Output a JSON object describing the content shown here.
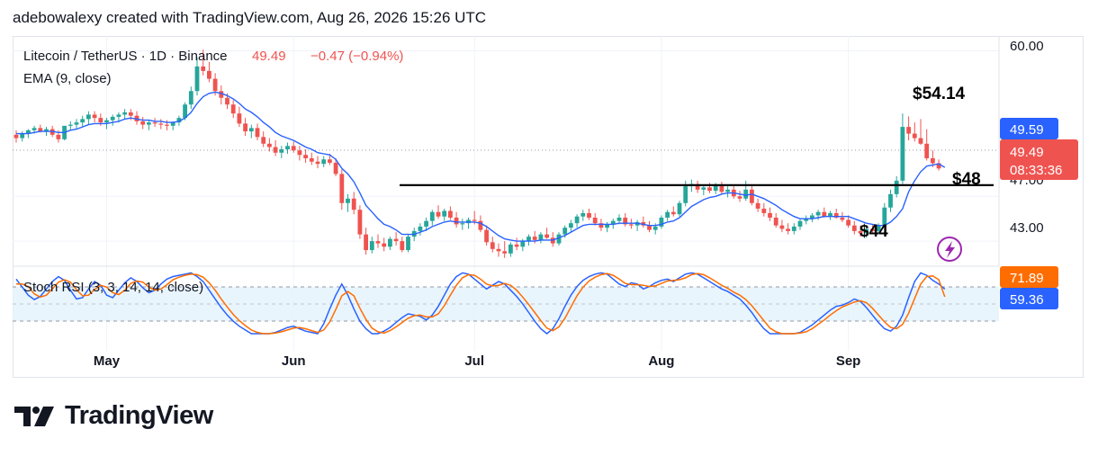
{
  "header": {
    "attribution": "adebowalexy created with TradingView.com, Aug 26, 2026 15:26 UTC"
  },
  "legend": {
    "symbol": "Litecoin / TetherUS · 1D · Binance",
    "last": "49.49",
    "change": "−0.47 (−0.94%)",
    "ema": "EMA (9, close)",
    "stoch": "Stoch RSI (3, 3, 14, 14, close)"
  },
  "price_axis": {
    "ticks": [
      "60.00",
      "47.00",
      "43.00"
    ]
  },
  "price_tags": {
    "ema": "49.59",
    "last": "49.49",
    "countdown": "08:33:36",
    "stoch_k": "71.89",
    "stoch_d": "59.36"
  },
  "annotations": {
    "high": "$54.14",
    "level": "$48",
    "low": "$44"
  },
  "time_axis": {
    "labels": [
      "May",
      "Jun",
      "Jul",
      "Aug",
      "Sep"
    ]
  },
  "footer": {
    "brand": "TradingView"
  },
  "colors": {
    "up": "#26a69a",
    "down": "#ef5350",
    "ema": "#2962ff",
    "stoch_k": "#2962ff",
    "stoch_d": "#ff6d00",
    "level": "#000000"
  },
  "chart_data": {
    "type": "candlestick",
    "title": "Litecoin / TetherUS · 1D · Binance",
    "ylim": [
      41,
      61
    ],
    "x_labels": [
      "May",
      "Jun",
      "Jul",
      "Aug",
      "Sep"
    ],
    "x_label_days": [
      15,
      46,
      76,
      107,
      138
    ],
    "horizontal_level": 48,
    "ohlc": [
      [
        52.5,
        52.9,
        51.8,
        52.2
      ],
      [
        52.2,
        52.8,
        51.9,
        52.6
      ],
      [
        52.6,
        53.0,
        52.2,
        52.9
      ],
      [
        52.9,
        53.3,
        52.6,
        53.1
      ],
      [
        53.1,
        53.4,
        52.7,
        52.8
      ],
      [
        52.8,
        53.2,
        52.4,
        53.0
      ],
      [
        53.0,
        53.3,
        52.3,
        52.5
      ],
      [
        52.5,
        52.9,
        51.8,
        52.1
      ],
      [
        52.1,
        53.1,
        52.0,
        53.3
      ],
      [
        53.3,
        53.7,
        52.9,
        53.4
      ],
      [
        53.4,
        53.9,
        53.0,
        53.6
      ],
      [
        53.6,
        54.2,
        53.2,
        53.9
      ],
      [
        53.9,
        54.6,
        53.4,
        54.3
      ],
      [
        54.3,
        54.6,
        53.6,
        54.0
      ],
      [
        54.0,
        54.4,
        53.3,
        53.6
      ],
      [
        53.6,
        54.0,
        53.0,
        53.8
      ],
      [
        53.8,
        54.3,
        53.3,
        54.1
      ],
      [
        54.1,
        54.5,
        53.6,
        54.3
      ],
      [
        54.3,
        54.8,
        53.9,
        54.5
      ],
      [
        54.5,
        54.8,
        53.8,
        54.2
      ],
      [
        54.2,
        54.6,
        53.4,
        53.7
      ],
      [
        53.7,
        54.1,
        53.0,
        53.4
      ],
      [
        53.4,
        53.8,
        52.9,
        53.6
      ],
      [
        53.6,
        54.0,
        53.2,
        53.5
      ],
      [
        53.5,
        53.9,
        53.0,
        53.4
      ],
      [
        53.4,
        53.8,
        52.9,
        53.3
      ],
      [
        53.3,
        53.7,
        52.9,
        53.6
      ],
      [
        53.6,
        54.2,
        53.3,
        54.0
      ],
      [
        54.0,
        55.4,
        53.8,
        55.2
      ],
      [
        55.2,
        56.8,
        54.8,
        56.4
      ],
      [
        56.4,
        59.4,
        56.0,
        58.6
      ],
      [
        58.6,
        60.1,
        57.8,
        58.2
      ],
      [
        58.2,
        59.0,
        57.2,
        57.5
      ],
      [
        57.5,
        58.0,
        56.0,
        56.4
      ],
      [
        56.4,
        56.9,
        55.2,
        55.8
      ],
      [
        55.8,
        56.2,
        54.8,
        55.2
      ],
      [
        55.2,
        55.6,
        54.0,
        54.4
      ],
      [
        54.4,
        55.0,
        53.2,
        53.5
      ],
      [
        53.5,
        54.0,
        52.4,
        52.8
      ],
      [
        52.8,
        53.4,
        52.2,
        53.1
      ],
      [
        53.1,
        53.5,
        52.0,
        52.3
      ],
      [
        52.3,
        52.8,
        51.4,
        51.7
      ],
      [
        51.7,
        52.2,
        51.0,
        51.4
      ],
      [
        51.4,
        52.0,
        50.6,
        50.9
      ],
      [
        50.9,
        51.5,
        50.4,
        51.2
      ],
      [
        51.2,
        51.8,
        50.8,
        51.5
      ],
      [
        51.5,
        51.9,
        50.9,
        51.1
      ],
      [
        51.1,
        51.5,
        50.2,
        50.7
      ],
      [
        50.7,
        51.2,
        50.0,
        50.4
      ],
      [
        50.4,
        50.9,
        49.8,
        50.1
      ],
      [
        50.1,
        50.6,
        49.5,
        49.9
      ],
      [
        49.9,
        50.6,
        49.6,
        50.3
      ],
      [
        50.3,
        50.8,
        49.8,
        50.0
      ],
      [
        50.0,
        50.4,
        48.8,
        49.0
      ],
      [
        49.0,
        49.4,
        45.8,
        46.4
      ],
      [
        46.4,
        47.2,
        45.6,
        46.8
      ],
      [
        46.8,
        47.4,
        45.4,
        45.8
      ],
      [
        45.8,
        46.2,
        43.2,
        43.6
      ],
      [
        43.6,
        44.2,
        41.8,
        42.2
      ],
      [
        42.2,
        43.4,
        41.9,
        43.0
      ],
      [
        43.0,
        43.6,
        42.4,
        42.8
      ],
      [
        42.8,
        43.3,
        42.1,
        42.5
      ],
      [
        42.5,
        43.4,
        42.2,
        43.2
      ],
      [
        43.2,
        43.8,
        42.6,
        43.0
      ],
      [
        43.0,
        43.4,
        42.0,
        42.2
      ],
      [
        42.2,
        43.6,
        42.0,
        43.4
      ],
      [
        43.4,
        44.2,
        43.0,
        43.9
      ],
      [
        43.9,
        44.6,
        43.5,
        44.3
      ],
      [
        44.3,
        45.1,
        43.9,
        44.8
      ],
      [
        44.8,
        45.8,
        44.4,
        45.6
      ],
      [
        45.6,
        46.2,
        45.0,
        45.2
      ],
      [
        45.2,
        45.9,
        44.8,
        45.7
      ],
      [
        45.7,
        46.1,
        44.9,
        45.1
      ],
      [
        45.1,
        45.6,
        44.2,
        44.5
      ],
      [
        44.5,
        45.0,
        44.0,
        44.6
      ],
      [
        44.6,
        45.1,
        44.1,
        44.9
      ],
      [
        44.9,
        45.7,
        44.5,
        44.8
      ],
      [
        44.8,
        45.3,
        43.8,
        44.0
      ],
      [
        44.0,
        44.4,
        42.6,
        42.9
      ],
      [
        42.9,
        43.4,
        42.0,
        42.3
      ],
      [
        42.3,
        42.8,
        41.6,
        42.1
      ],
      [
        42.1,
        43.0,
        41.5,
        41.9
      ],
      [
        41.9,
        42.9,
        41.6,
        42.7
      ],
      [
        42.7,
        43.3,
        42.2,
        42.5
      ],
      [
        42.5,
        43.2,
        42.1,
        43.0
      ],
      [
        43.0,
        43.6,
        42.6,
        43.4
      ],
      [
        43.4,
        43.9,
        42.8,
        43.1
      ],
      [
        43.1,
        43.8,
        42.8,
        43.6
      ],
      [
        43.6,
        44.2,
        43.2,
        43.3
      ],
      [
        43.3,
        43.8,
        42.5,
        42.8
      ],
      [
        42.8,
        43.8,
        42.6,
        43.6
      ],
      [
        43.6,
        44.4,
        43.3,
        44.2
      ],
      [
        44.2,
        44.9,
        43.8,
        44.6
      ],
      [
        44.6,
        45.4,
        44.2,
        45.2
      ],
      [
        45.2,
        45.8,
        44.8,
        45.5
      ],
      [
        45.5,
        45.9,
        44.9,
        45.1
      ],
      [
        45.1,
        45.5,
        44.4,
        44.6
      ],
      [
        44.6,
        45.0,
        43.9,
        44.2
      ],
      [
        44.2,
        44.7,
        43.8,
        44.5
      ],
      [
        44.5,
        45.0,
        44.1,
        44.8
      ],
      [
        44.8,
        45.4,
        44.5,
        45.1
      ],
      [
        45.1,
        45.5,
        44.3,
        44.5
      ],
      [
        44.5,
        45.0,
        44.1,
        44.4
      ],
      [
        44.4,
        44.9,
        43.9,
        44.7
      ],
      [
        44.7,
        45.2,
        44.2,
        44.4
      ],
      [
        44.4,
        44.8,
        43.8,
        44.0
      ],
      [
        44.0,
        44.6,
        43.6,
        44.3
      ],
      [
        44.3,
        45.3,
        44.1,
        45.1
      ],
      [
        45.1,
        45.8,
        44.8,
        45.6
      ],
      [
        45.6,
        46.1,
        45.2,
        45.4
      ],
      [
        45.4,
        46.6,
        45.2,
        46.4
      ],
      [
        46.4,
        48.4,
        46.1,
        47.9
      ],
      [
        47.9,
        48.5,
        47.4,
        48.1
      ],
      [
        48.1,
        48.4,
        47.3,
        47.6
      ],
      [
        47.6,
        48.0,
        47.1,
        47.8
      ],
      [
        47.8,
        48.2,
        47.3,
        47.5
      ],
      [
        47.5,
        48.2,
        47.2,
        48.0
      ],
      [
        48.0,
        48.3,
        47.2,
        47.4
      ],
      [
        47.4,
        47.9,
        46.9,
        47.6
      ],
      [
        47.6,
        48.0,
        46.8,
        47.0
      ],
      [
        47.0,
        47.5,
        46.5,
        46.8
      ],
      [
        46.8,
        48.4,
        46.6,
        47.6
      ],
      [
        47.6,
        48.0,
        46.2,
        46.4
      ],
      [
        46.4,
        46.8,
        45.6,
        45.9
      ],
      [
        45.9,
        46.4,
        45.2,
        45.5
      ],
      [
        45.5,
        46.0,
        44.8,
        45.1
      ],
      [
        45.1,
        45.5,
        44.2,
        44.4
      ],
      [
        44.4,
        44.9,
        43.8,
        44.1
      ],
      [
        44.1,
        44.6,
        43.6,
        43.9
      ],
      [
        43.9,
        44.6,
        43.6,
        44.3
      ],
      [
        44.3,
        45.0,
        44.0,
        44.8
      ],
      [
        44.8,
        45.3,
        44.5,
        45.0
      ],
      [
        45.0,
        45.5,
        44.7,
        45.3
      ],
      [
        45.3,
        45.8,
        44.9,
        45.6
      ],
      [
        45.6,
        46.0,
        45.1,
        45.2
      ],
      [
        45.2,
        45.7,
        44.9,
        45.5
      ],
      [
        45.5,
        45.9,
        45.0,
        45.1
      ],
      [
        45.1,
        45.6,
        44.7,
        44.9
      ],
      [
        44.9,
        45.3,
        44.2,
        44.4
      ],
      [
        44.4,
        44.8,
        43.6,
        43.9
      ],
      [
        43.9,
        44.4,
        43.4,
        43.7
      ],
      [
        43.7,
        44.3,
        43.3,
        44.1
      ],
      [
        44.1,
        44.5,
        43.7,
        43.9
      ],
      [
        43.9,
        44.6,
        43.7,
        44.4
      ],
      [
        44.4,
        46.4,
        44.2,
        46.0
      ],
      [
        46.0,
        47.6,
        45.6,
        47.2
      ],
      [
        47.2,
        48.8,
        46.9,
        48.4
      ],
      [
        48.4,
        54.4,
        48.1,
        53.2
      ],
      [
        53.2,
        54.14,
        52.0,
        52.6
      ],
      [
        52.6,
        53.6,
        51.9,
        52.2
      ],
      [
        52.2,
        53.9,
        51.6,
        51.7
      ],
      [
        51.7,
        53.0,
        50.2,
        50.4
      ],
      [
        50.4,
        51.1,
        49.6,
        49.96
      ],
      [
        49.96,
        50.3,
        49.3,
        49.49
      ]
    ],
    "ema": [
      52.6,
      52.6,
      52.6,
      52.7,
      52.8,
      52.8,
      52.8,
      52.7,
      52.7,
      52.9,
      53.0,
      53.2,
      53.4,
      53.5,
      53.5,
      53.5,
      53.6,
      53.7,
      53.9,
      54.0,
      53.9,
      53.8,
      53.8,
      53.7,
      53.7,
      53.6,
      53.6,
      53.7,
      54.0,
      54.5,
      55.3,
      55.9,
      56.2,
      56.3,
      56.2,
      56.0,
      55.7,
      55.3,
      54.8,
      54.5,
      54.1,
      53.6,
      53.2,
      52.7,
      52.4,
      52.2,
      52.0,
      51.7,
      51.4,
      51.2,
      50.9,
      50.8,
      50.7,
      50.3,
      49.5,
      49.0,
      48.3,
      47.3,
      46.2,
      45.6,
      45.0,
      44.5,
      44.3,
      44.0,
      43.6,
      43.6,
      43.6,
      43.8,
      44.0,
      44.3,
      44.5,
      44.7,
      44.8,
      44.7,
      44.7,
      44.7,
      44.7,
      44.6,
      44.3,
      43.9,
      43.5,
      43.2,
      43.1,
      43.0,
      43.0,
      43.0,
      43.0,
      43.1,
      43.1,
      43.1,
      43.3,
      43.5,
      43.8,
      44.1,
      44.4,
      44.5,
      44.5,
      44.5,
      44.5,
      44.5,
      44.6,
      44.6,
      44.6,
      44.6,
      44.5,
      44.4,
      44.4,
      44.5,
      44.7,
      44.8,
      45.1,
      45.6,
      46.1,
      46.4,
      46.7,
      46.9,
      47.0,
      47.2,
      47.3,
      47.3,
      47.2,
      47.1,
      47.2,
      47.0,
      46.8,
      46.5,
      46.2,
      45.8,
      45.5,
      45.2,
      45.0,
      45.0,
      45.0,
      45.1,
      45.2,
      45.2,
      45.2,
      45.2,
      45.2,
      45.0,
      44.8,
      44.6,
      44.5,
      44.4,
      44.4,
      44.7,
      45.2,
      45.9,
      47.4,
      48.4,
      49.2,
      49.7,
      49.8,
      49.9,
      49.59
    ],
    "stoch_k": [
      88,
      75,
      62,
      55,
      60,
      72,
      84,
      92,
      86,
      70,
      56,
      58,
      72,
      84,
      78,
      62,
      58,
      70,
      82,
      90,
      84,
      74,
      66,
      70,
      80,
      88,
      92,
      94,
      96,
      98,
      92,
      84,
      70,
      56,
      42,
      30,
      20,
      12,
      6,
      0,
      0,
      0,
      0,
      2,
      6,
      10,
      12,
      8,
      4,
      2,
      0,
      16,
      40,
      62,
      80,
      62,
      40,
      20,
      8,
      0,
      0,
      4,
      10,
      18,
      26,
      32,
      30,
      28,
      22,
      30,
      44,
      62,
      80,
      92,
      98,
      96,
      88,
      80,
      72,
      78,
      84,
      80,
      70,
      60,
      48,
      34,
      20,
      8,
      0,
      8,
      24,
      44,
      62,
      76,
      86,
      92,
      96,
      98,
      96,
      88,
      80,
      76,
      82,
      80,
      72,
      76,
      82,
      86,
      88,
      84,
      90,
      96,
      98,
      96,
      90,
      84,
      78,
      72,
      68,
      62,
      56,
      46,
      34,
      20,
      8,
      0,
      0,
      0,
      0,
      0,
      2,
      8,
      14,
      22,
      30,
      38,
      44,
      46,
      50,
      56,
      52,
      42,
      30,
      18,
      8,
      4,
      12,
      30,
      58,
      84,
      98,
      94,
      86,
      80,
      71.89
    ],
    "stoch_d": [
      80,
      80,
      76,
      64,
      59,
      62,
      72,
      83,
      87,
      83,
      71,
      61,
      62,
      71,
      78,
      75,
      66,
      63,
      70,
      81,
      85,
      83,
      75,
      70,
      72,
      79,
      87,
      91,
      94,
      96,
      95,
      91,
      82,
      70,
      56,
      43,
      31,
      21,
      13,
      6,
      2,
      0,
      0,
      1,
      3,
      6,
      9,
      10,
      8,
      5,
      2,
      6,
      19,
      39,
      61,
      68,
      61,
      41,
      23,
      9,
      3,
      1,
      5,
      11,
      18,
      25,
      29,
      30,
      27,
      27,
      32,
      45,
      62,
      78,
      90,
      95,
      94,
      88,
      80,
      77,
      78,
      81,
      78,
      70,
      59,
      47,
      34,
      21,
      9,
      5,
      11,
      25,
      43,
      61,
      75,
      85,
      91,
      95,
      97,
      94,
      88,
      81,
      79,
      79,
      78,
      76,
      77,
      81,
      85,
      86,
      87,
      90,
      95,
      97,
      95,
      90,
      84,
      78,
      73,
      67,
      62,
      55,
      45,
      33,
      21,
      9,
      3,
      0,
      0,
      0,
      1,
      3,
      8,
      15,
      22,
      30,
      37,
      43,
      47,
      51,
      53,
      50,
      41,
      30,
      19,
      10,
      8,
      15,
      33,
      57,
      80,
      92,
      93,
      87,
      59.36
    ]
  }
}
